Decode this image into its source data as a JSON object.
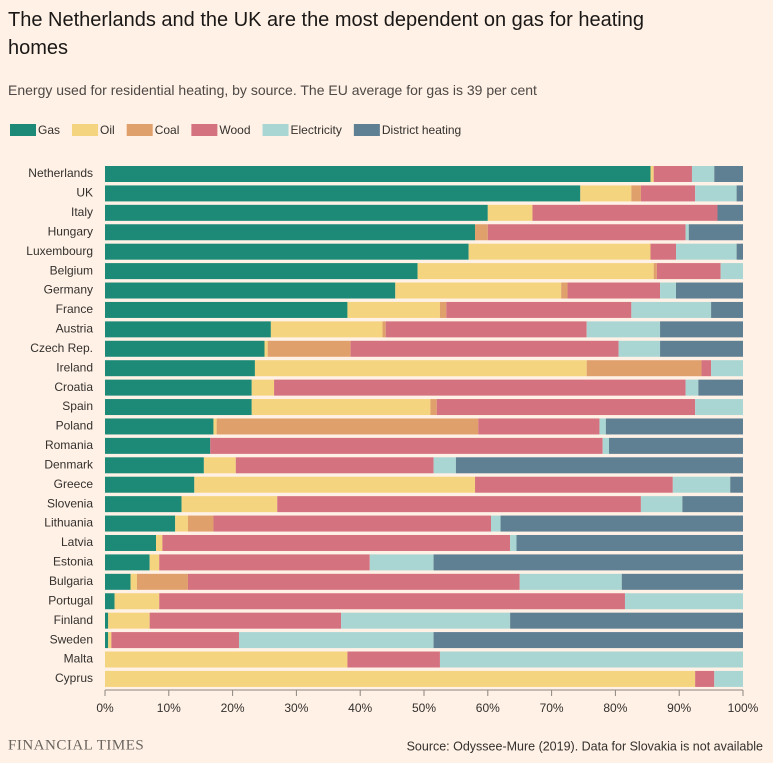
{
  "chart_data": {
    "type": "stacked_bar_horizontal",
    "title": "The Netherlands and the UK are the most dependent on gas for heating homes",
    "subtitle": "Energy used for residential heating, by source. The EU average for gas is 39 per cent",
    "source": "Source: Odyssee-Mure (2019). Data for Slovakia is not available",
    "logo": "FINANCIAL TIMES",
    "categories": [
      "Netherlands",
      "UK",
      "Italy",
      "Hungary",
      "Luxembourg",
      "Belgium",
      "Germany",
      "France",
      "Austria",
      "Czech Rep.",
      "Ireland",
      "Croatia",
      "Spain",
      "Poland",
      "Romania",
      "Denmark",
      "Greece",
      "Slovenia",
      "Lithuania",
      "Latvia",
      "Estonia",
      "Bulgaria",
      "Portugal",
      "Finland",
      "Sweden",
      "Malta",
      "Cyprus"
    ],
    "series": [
      {
        "name": "Gas",
        "color": "#1d8a78",
        "values": [
          85.5,
          74.5,
          60,
          58,
          57,
          49,
          45.5,
          38,
          26,
          25,
          23.5,
          23,
          23,
          17,
          16.5,
          15.5,
          14,
          12,
          11,
          8,
          7,
          4,
          1.5,
          0.5,
          0.5,
          0,
          0
        ]
      },
      {
        "name": "Oil",
        "color": "#f5d47f",
        "values": [
          0.5,
          8,
          7,
          0,
          28.5,
          37,
          26,
          14.5,
          17.5,
          0.5,
          52,
          3.5,
          28,
          0.5,
          0,
          5,
          44,
          15,
          2,
          1,
          1.5,
          1,
          7,
          6.5,
          0.5,
          38,
          92.5
        ]
      },
      {
        "name": "Coal",
        "color": "#e0a06c",
        "values": [
          0,
          1.5,
          0,
          2,
          0,
          0.5,
          1,
          1,
          0.5,
          13,
          18,
          0,
          1,
          41,
          0,
          0,
          0,
          0,
          4,
          0,
          0,
          8,
          0,
          0,
          0,
          0,
          0
        ]
      },
      {
        "name": "Wood",
        "color": "#d5727f",
        "values": [
          6,
          8.5,
          29,
          31,
          4,
          10,
          14.5,
          29,
          31.5,
          42,
          1.5,
          64.5,
          40.5,
          19,
          61.5,
          31,
          31,
          57,
          43.5,
          54.5,
          33,
          52,
          73,
          30,
          20,
          14.5,
          3
        ]
      },
      {
        "name": "Electricity",
        "color": "#a9d6d3",
        "values": [
          3.5,
          6.5,
          0,
          0.5,
          9.5,
          3.5,
          2.5,
          12.5,
          11.5,
          6.5,
          5,
          2,
          7.5,
          1,
          1,
          3.5,
          9,
          6.5,
          1.5,
          1,
          10,
          16,
          18.5,
          26.5,
          30.5,
          47.5,
          4.5
        ]
      },
      {
        "name": "District heating",
        "color": "#5f7f93",
        "values": [
          4.5,
          1,
          4,
          8.5,
          1,
          0,
          10.5,
          5,
          13,
          13,
          0,
          7,
          0,
          21.5,
          21,
          45,
          2,
          9.5,
          38,
          35.5,
          48.5,
          19,
          0,
          36.5,
          48.5,
          0,
          0
        ]
      }
    ],
    "xlim": [
      0,
      100
    ],
    "xticks": [
      {
        "value": 0,
        "label": "0%"
      },
      {
        "value": 10,
        "label": "10%"
      },
      {
        "value": 20,
        "label": "20%"
      },
      {
        "value": 30,
        "label": "30%"
      },
      {
        "value": 40,
        "label": "40%"
      },
      {
        "value": 50,
        "label": "50%"
      },
      {
        "value": 60,
        "label": "60%"
      },
      {
        "value": 70,
        "label": "70%"
      },
      {
        "value": 80,
        "label": "80%"
      },
      {
        "value": 90,
        "label": "90%"
      },
      {
        "value": 100,
        "label": "100%"
      }
    ],
    "legend": "top-left"
  }
}
